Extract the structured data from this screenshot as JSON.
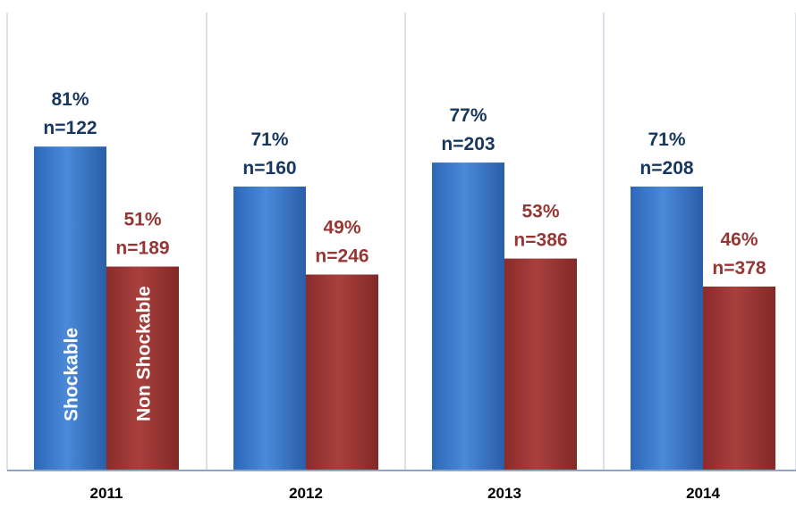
{
  "chart_data": {
    "type": "bar",
    "categories": [
      "2011",
      "2012",
      "2013",
      "2014"
    ],
    "series": [
      {
        "name": "Shockable",
        "color": "#3878c8",
        "values": [
          81,
          71,
          77,
          71
        ],
        "labels": [
          {
            "pct": "81%",
            "n": "n=122"
          },
          {
            "pct": "71%",
            "n": "n=160"
          },
          {
            "pct": "77%",
            "n": "n=203"
          },
          {
            "pct": "71%",
            "n": "n=208"
          }
        ]
      },
      {
        "name": "Non Shockable",
        "color": "#9a3533",
        "values": [
          51,
          49,
          53,
          46
        ],
        "labels": [
          {
            "pct": "51%",
            "n": "n=189"
          },
          {
            "pct": "49%",
            "n": "n=246"
          },
          {
            "pct": "53%",
            "n": "n=386"
          },
          {
            "pct": "46%",
            "n": "n=378"
          }
        ]
      }
    ],
    "ylim": [
      0,
      100
    ],
    "grid": false,
    "legend": "inside-first-group-bars"
  }
}
